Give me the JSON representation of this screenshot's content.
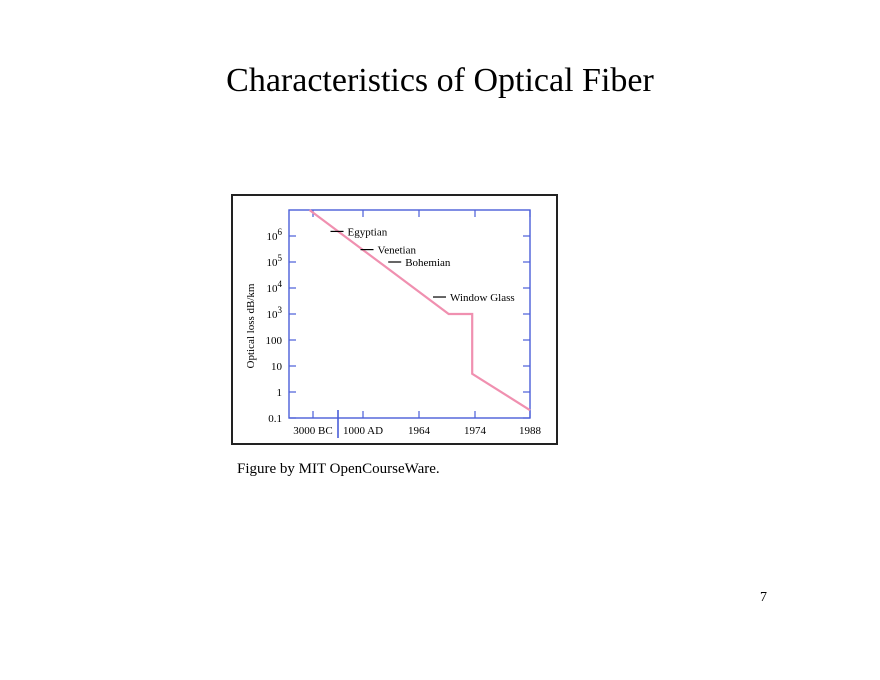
{
  "slide": {
    "title": "Characteristics of Optical Fiber",
    "caption": "Figure by MIT OpenCourseWare.",
    "page_number": "7"
  },
  "colors": {
    "series": "#f090b0",
    "axis": "#4a5ed8",
    "frame": "#222222"
  },
  "chart_data": {
    "type": "line",
    "title": "",
    "xlabel": "",
    "ylabel": "Optical loss dB/km",
    "y_scale": "log",
    "ylim": [
      0.1,
      10000000
    ],
    "y_ticks": [
      {
        "value": 0.1,
        "label": "0.1"
      },
      {
        "value": 1,
        "label": "1"
      },
      {
        "value": 10,
        "label": "10"
      },
      {
        "value": 100,
        "label": "100"
      },
      {
        "value": 1000,
        "label": "10",
        "exp": "3"
      },
      {
        "value": 10000,
        "label": "10",
        "exp": "4"
      },
      {
        "value": 100000,
        "label": "10",
        "exp": "5"
      },
      {
        "value": 1000000,
        "label": "10",
        "exp": "6"
      }
    ],
    "x_ticks": [
      "3000 BC",
      "1000 AD",
      "1964",
      "1974",
      "1988"
    ],
    "x_note": "non-linear time axis with a break between 3000 BC and 1000 AD",
    "series": [
      {
        "name": "Optical loss",
        "points": [
          {
            "x": -0.07,
            "y": 10000000
          },
          {
            "x": 2.53,
            "y": 1000
          },
          {
            "x": 2.95,
            "y": 1000
          },
          {
            "x": 2.95,
            "y": 5
          },
          {
            "x": 4.0,
            "y": 0.2
          }
        ]
      }
    ],
    "annotations": [
      {
        "text": "Egyptian",
        "x": 0.35,
        "y": 1500000
      },
      {
        "text": "Venetian",
        "x": 0.95,
        "y": 300000
      },
      {
        "text": "Bohemian",
        "x": 1.45,
        "y": 100000
      },
      {
        "text": "Window Glass",
        "x": 2.25,
        "y": 4500
      }
    ]
  }
}
